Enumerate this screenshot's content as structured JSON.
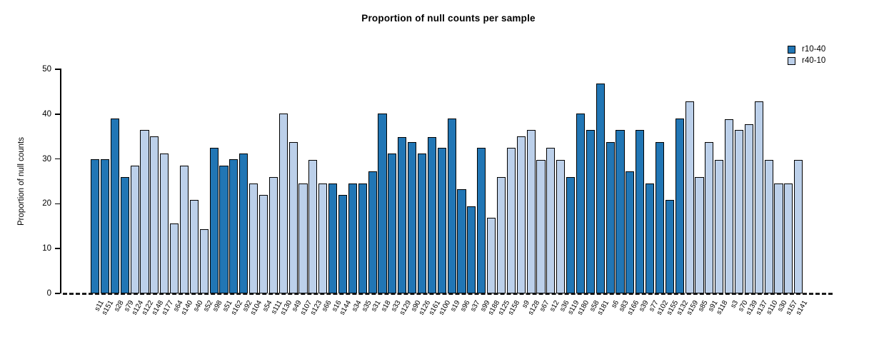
{
  "chart_data": {
    "type": "bar",
    "title": "Proportion of null counts per sample",
    "xlabel": "",
    "ylabel": "Proportion of null counts",
    "ylim": [
      0,
      50
    ],
    "yticks": [
      0,
      10,
      20,
      30,
      40,
      50
    ],
    "grid": "off",
    "legend_position": "top-right",
    "baseline_style": "dashed",
    "legend": [
      {
        "name": "r10-40",
        "color": "#2176B5"
      },
      {
        "name": "r40-10",
        "color": "#BCD0EA"
      }
    ],
    "bars": [
      {
        "label": "s11",
        "value": 29.9,
        "series": "r10-40"
      },
      {
        "label": "s151",
        "value": 29.9,
        "series": "r10-40"
      },
      {
        "label": "s28",
        "value": 39.0,
        "series": "r10-40"
      },
      {
        "label": "s79",
        "value": 26.0,
        "series": "r10-40"
      },
      {
        "label": "s124",
        "value": 28.5,
        "series": "r40-10"
      },
      {
        "label": "s122",
        "value": 36.4,
        "series": "r40-10"
      },
      {
        "label": "s148",
        "value": 35.0,
        "series": "r40-10"
      },
      {
        "label": "s177",
        "value": 31.2,
        "series": "r40-10"
      },
      {
        "label": "s64",
        "value": 15.6,
        "series": "r40-10"
      },
      {
        "label": "s140",
        "value": 28.5,
        "series": "r40-10"
      },
      {
        "label": "s40",
        "value": 20.8,
        "series": "r40-10"
      },
      {
        "label": "s52",
        "value": 14.3,
        "series": "r40-10"
      },
      {
        "label": "s98",
        "value": 32.5,
        "series": "r10-40"
      },
      {
        "label": "s51",
        "value": 28.5,
        "series": "r10-40"
      },
      {
        "label": "s162",
        "value": 29.9,
        "series": "r10-40"
      },
      {
        "label": "s92",
        "value": 31.2,
        "series": "r10-40"
      },
      {
        "label": "s104",
        "value": 24.5,
        "series": "r40-10"
      },
      {
        "label": "s54",
        "value": 22.0,
        "series": "r40-10"
      },
      {
        "label": "s111",
        "value": 26.0,
        "series": "r40-10"
      },
      {
        "label": "s130",
        "value": 40.2,
        "series": "r40-10"
      },
      {
        "label": "s49",
        "value": 33.7,
        "series": "r40-10"
      },
      {
        "label": "s107",
        "value": 24.5,
        "series": "r40-10"
      },
      {
        "label": "s123",
        "value": 29.8,
        "series": "r40-10"
      },
      {
        "label": "s66",
        "value": 24.5,
        "series": "r40-10"
      },
      {
        "label": "s16",
        "value": 24.5,
        "series": "r10-40"
      },
      {
        "label": "s144",
        "value": 22.0,
        "series": "r10-40"
      },
      {
        "label": "s34",
        "value": 24.5,
        "series": "r10-40"
      },
      {
        "label": "s35",
        "value": 24.5,
        "series": "r10-40"
      },
      {
        "label": "s31",
        "value": 27.2,
        "series": "r10-40"
      },
      {
        "label": "s18",
        "value": 40.2,
        "series": "r10-40"
      },
      {
        "label": "s33",
        "value": 31.2,
        "series": "r10-40"
      },
      {
        "label": "s129",
        "value": 34.9,
        "series": "r10-40"
      },
      {
        "label": "s90",
        "value": 33.7,
        "series": "r10-40"
      },
      {
        "label": "s126",
        "value": 31.2,
        "series": "r10-40"
      },
      {
        "label": "s161",
        "value": 34.9,
        "series": "r10-40"
      },
      {
        "label": "s100",
        "value": 32.5,
        "series": "r10-40"
      },
      {
        "label": "s19",
        "value": 39.0,
        "series": "r10-40"
      },
      {
        "label": "s96",
        "value": 23.3,
        "series": "r10-40"
      },
      {
        "label": "s37",
        "value": 19.5,
        "series": "r10-40"
      },
      {
        "label": "s99",
        "value": 32.5,
        "series": "r10-40"
      },
      {
        "label": "s188",
        "value": 16.9,
        "series": "r40-10"
      },
      {
        "label": "s125",
        "value": 26.0,
        "series": "r40-10"
      },
      {
        "label": "s158",
        "value": 32.5,
        "series": "r40-10"
      },
      {
        "label": "s9",
        "value": 35.0,
        "series": "r40-10"
      },
      {
        "label": "s128",
        "value": 36.4,
        "series": "r40-10"
      },
      {
        "label": "s67",
        "value": 29.8,
        "series": "r40-10"
      },
      {
        "label": "s12",
        "value": 32.5,
        "series": "r40-10"
      },
      {
        "label": "s36",
        "value": 29.8,
        "series": "r40-10"
      },
      {
        "label": "s119",
        "value": 26.0,
        "series": "r10-40"
      },
      {
        "label": "s180",
        "value": 40.2,
        "series": "r10-40"
      },
      {
        "label": "s58",
        "value": 36.4,
        "series": "r10-40"
      },
      {
        "label": "s181",
        "value": 46.8,
        "series": "r10-40"
      },
      {
        "label": "s6",
        "value": 33.7,
        "series": "r10-40"
      },
      {
        "label": "s83",
        "value": 36.4,
        "series": "r10-40"
      },
      {
        "label": "s166",
        "value": 27.2,
        "series": "r10-40"
      },
      {
        "label": "s39",
        "value": 36.4,
        "series": "r10-40"
      },
      {
        "label": "s77",
        "value": 24.5,
        "series": "r10-40"
      },
      {
        "label": "s102",
        "value": 33.7,
        "series": "r10-40"
      },
      {
        "label": "s155",
        "value": 20.8,
        "series": "r10-40"
      },
      {
        "label": "s132",
        "value": 39.0,
        "series": "r10-40"
      },
      {
        "label": "s159",
        "value": 42.8,
        "series": "r40-10"
      },
      {
        "label": "s85",
        "value": 26.0,
        "series": "r40-10"
      },
      {
        "label": "s91",
        "value": 33.7,
        "series": "r40-10"
      },
      {
        "label": "s118",
        "value": 29.8,
        "series": "r40-10"
      },
      {
        "label": "s3",
        "value": 38.9,
        "series": "r40-10"
      },
      {
        "label": "s70",
        "value": 36.4,
        "series": "r40-10"
      },
      {
        "label": "s139",
        "value": 37.7,
        "series": "r40-10"
      },
      {
        "label": "s137",
        "value": 42.8,
        "series": "r40-10"
      },
      {
        "label": "s110",
        "value": 29.8,
        "series": "r40-10"
      },
      {
        "label": "s30",
        "value": 24.5,
        "series": "r40-10"
      },
      {
        "label": "s157",
        "value": 24.5,
        "series": "r40-10"
      },
      {
        "label": "s141",
        "value": 29.8,
        "series": "r40-10"
      }
    ]
  }
}
